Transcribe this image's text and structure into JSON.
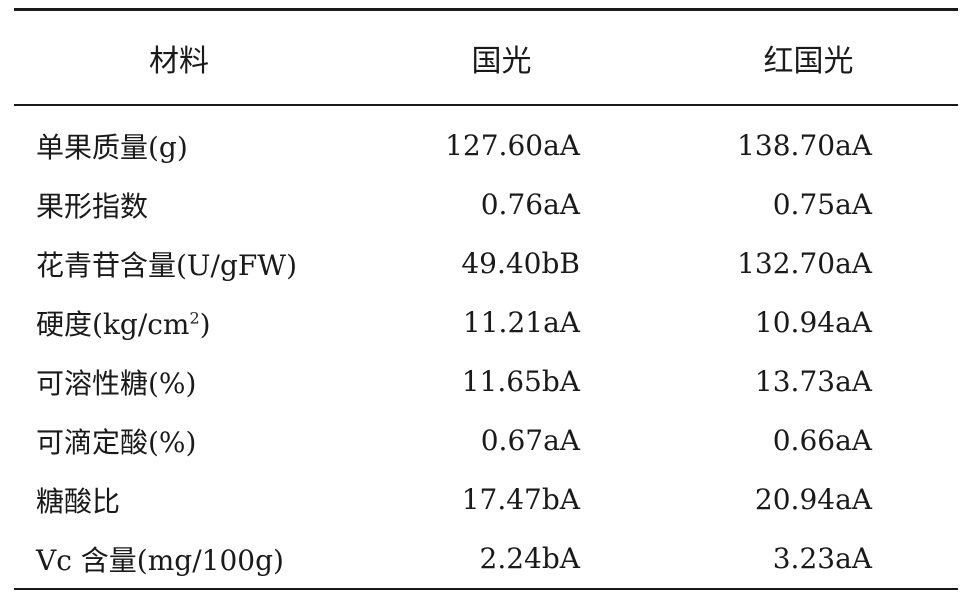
{
  "table": {
    "headers": [
      "材料",
      "国光",
      "红国光"
    ],
    "rows": [
      {
        "label": "单果质量(g)",
        "values": [
          "127.60aA",
          "138.70aA"
        ]
      },
      {
        "label": "果形指数",
        "values": [
          "0.76aA",
          "0.75aA"
        ]
      },
      {
        "label": "花青苷含量(U/gFW)",
        "values": [
          "49.40bB",
          "132.70aA"
        ]
      },
      {
        "label_before_sup": "硬度(kg/cm",
        "label_sup": "2",
        "label_after_sup": ")",
        "values": [
          "11.21aA",
          "10.94aA"
        ]
      },
      {
        "label": "可溶性糖(%)",
        "values": [
          "11.65bA",
          "13.73aA"
        ]
      },
      {
        "label": "可滴定酸(%)",
        "values": [
          "0.67aA",
          "0.66aA"
        ]
      },
      {
        "label": "糖酸比",
        "values": [
          "17.47bA",
          "20.94aA"
        ]
      },
      {
        "label": "Vc 含量(mg/100g)",
        "values": [
          "2.24bA",
          "3.23aA"
        ]
      }
    ]
  }
}
